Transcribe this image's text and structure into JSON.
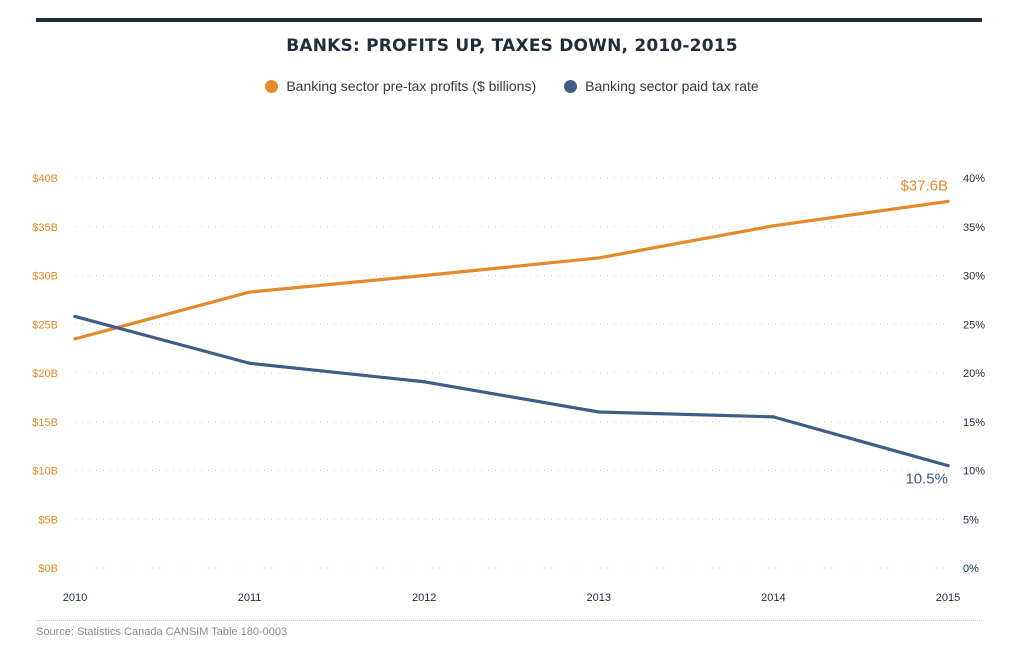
{
  "title": "BANKS: PROFITS UP, TAXES DOWN, 2010-2015",
  "legend": [
    {
      "label": "Banking sector pre-tax profits ($ billions)",
      "color": "#e58a2a"
    },
    {
      "label": "Banking sector paid tax rate",
      "color": "#3f5e86"
    }
  ],
  "source": "Source: Statistics Canada CANSIM Table 180-0003",
  "chart_data": {
    "type": "line",
    "title": "BANKS: PROFITS UP, TAXES DOWN, 2010-2015",
    "x": [
      "2010",
      "2011",
      "2012",
      "2013",
      "2014",
      "2015"
    ],
    "series": [
      {
        "name": "Banking sector pre-tax profits ($ billions)",
        "axis": "left",
        "color": "#e58a2a",
        "values": [
          23.5,
          28.3,
          30.0,
          31.8,
          35.1,
          37.6
        ],
        "end_label": "$37.6B"
      },
      {
        "name": "Banking sector paid tax rate",
        "axis": "right",
        "color": "#3f5e86",
        "values": [
          25.8,
          21.0,
          19.1,
          16.0,
          15.5,
          10.5
        ],
        "end_label": "10.5%"
      }
    ],
    "y_left": {
      "ticks": [
        "$0B",
        "$5B",
        "$10B",
        "$15B",
        "$20B",
        "$25B",
        "$30B",
        "$35B",
        "$40B"
      ],
      "lim": [
        0,
        40
      ],
      "color": "#e58a2a"
    },
    "y_right": {
      "ticks": [
        "0%",
        "5%",
        "10%",
        "15%",
        "20%",
        "25%",
        "30%",
        "35%",
        "40%"
      ],
      "lim": [
        0,
        40
      ],
      "color": "#1f2d3d"
    },
    "grid": true
  }
}
